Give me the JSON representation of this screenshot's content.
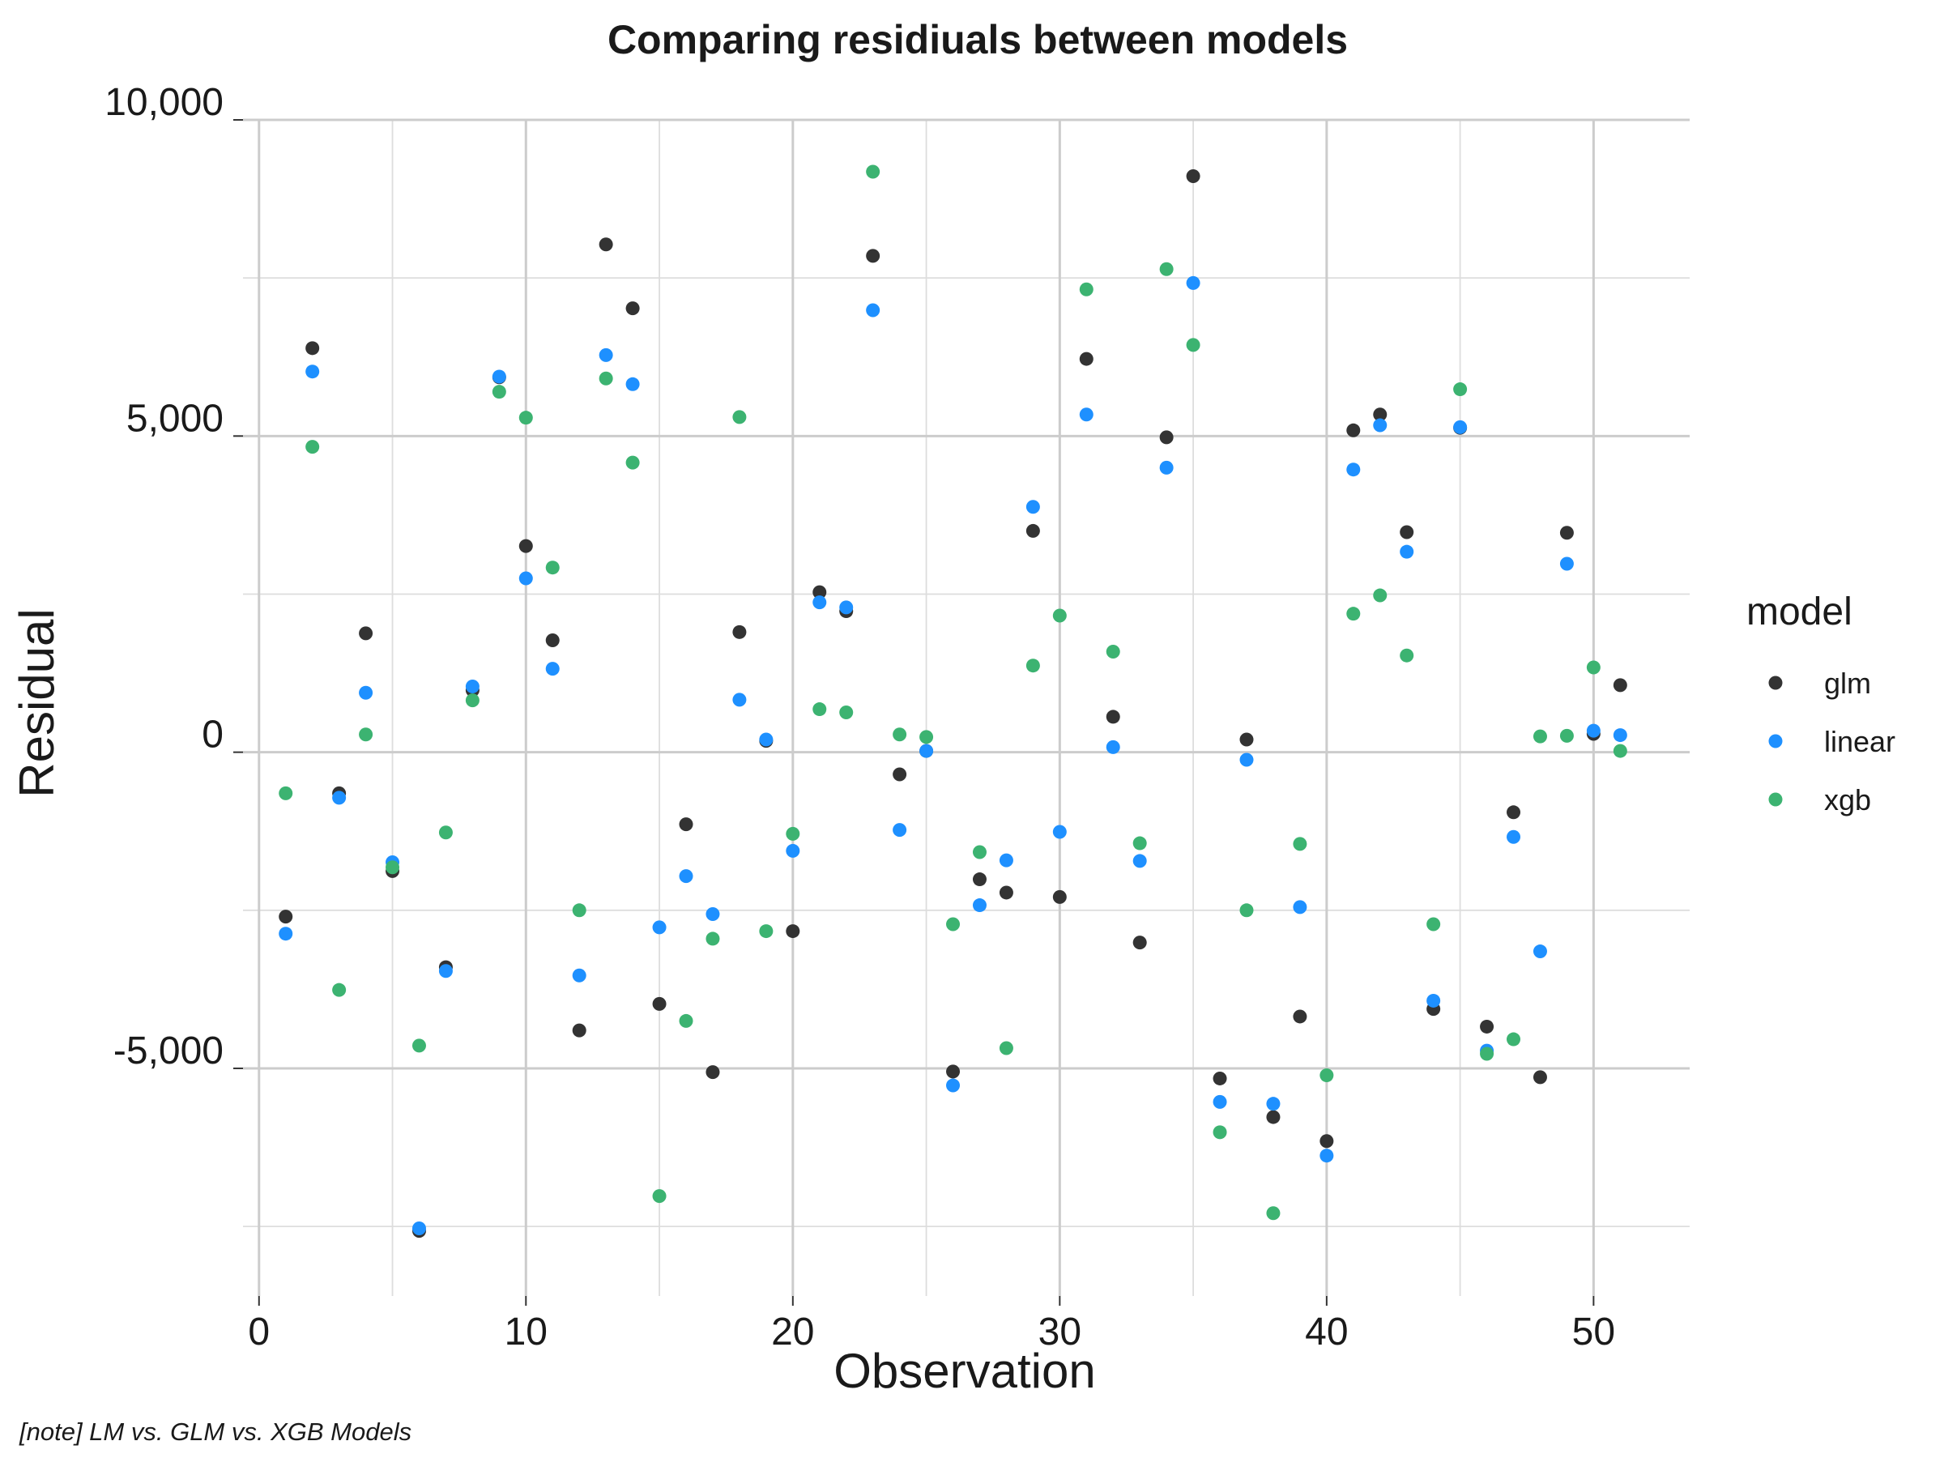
{
  "chart_data": {
    "type": "scatter",
    "title": "Comparing residiuals between models",
    "xlabel": "Observation",
    "ylabel": "Residual",
    "caption": "[note] LM vs. GLM vs. XGB Models",
    "xlim": [
      -0.6,
      53.6
    ],
    "ylim": [
      -8600,
      10000
    ],
    "x_ticks": [
      0,
      10,
      20,
      30,
      40,
      50
    ],
    "x_tick_labels": [
      "0",
      "10",
      "20",
      "30",
      "40",
      "50"
    ],
    "y_ticks": [
      -5000,
      0,
      5000,
      10000
    ],
    "y_tick_labels": [
      "-5,000",
      "0",
      "5,000",
      "10,000"
    ],
    "grid": true,
    "legend": {
      "title": "model",
      "position": "right"
    },
    "series": [
      {
        "name": "glm",
        "color": "#333333",
        "x": [
          1,
          2,
          3,
          4,
          5,
          6,
          7,
          8,
          9,
          10,
          11,
          12,
          13,
          14,
          15,
          16,
          17,
          18,
          19,
          20,
          21,
          22,
          23,
          24,
          25,
          26,
          27,
          28,
          29,
          30,
          31,
          32,
          33,
          34,
          35,
          36,
          37,
          38,
          39,
          40,
          41,
          42,
          43,
          44,
          45,
          46,
          47,
          48,
          49,
          50,
          51
        ],
        "y": [
          -2600,
          6390,
          -650,
          1880,
          -1880,
          -7570,
          -3400,
          980,
          5930,
          3260,
          1770,
          -4400,
          8030,
          7020,
          -3980,
          -1140,
          -5060,
          1900,
          180,
          -2830,
          2530,
          2230,
          7850,
          -350,
          20,
          -5050,
          -2010,
          -2220,
          3500,
          -2290,
          6220,
          560,
          -3010,
          4980,
          9110,
          -5160,
          200,
          -5770,
          -4180,
          -6150,
          5090,
          5340,
          3480,
          -4060,
          5130,
          -4340,
          -950,
          -5140,
          3470,
          290,
          1060
        ]
      },
      {
        "name": "linear",
        "color": "#1e90ff",
        "x": [
          1,
          2,
          3,
          4,
          5,
          6,
          7,
          8,
          9,
          10,
          11,
          12,
          13,
          14,
          15,
          16,
          17,
          18,
          19,
          20,
          21,
          22,
          23,
          24,
          25,
          26,
          27,
          28,
          29,
          30,
          31,
          32,
          33,
          34,
          35,
          36,
          37,
          38,
          39,
          40,
          41,
          42,
          43,
          44,
          45,
          46,
          47,
          48,
          49,
          50,
          51
        ],
        "y": [
          -2870,
          6020,
          -720,
          940,
          -1740,
          -7530,
          -3460,
          1040,
          5940,
          2750,
          1320,
          -3530,
          6280,
          5820,
          -2770,
          -1960,
          -2560,
          830,
          200,
          -1560,
          2370,
          2290,
          6990,
          -1230,
          20,
          -5270,
          -2420,
          -1710,
          3880,
          -1260,
          5340,
          80,
          -1720,
          4500,
          7420,
          -5530,
          -120,
          -5560,
          -2450,
          -6380,
          4470,
          5170,
          3170,
          -3930,
          5140,
          -4720,
          -1340,
          -3150,
          2980,
          340,
          270
        ]
      },
      {
        "name": "xgb",
        "color": "#3cb371",
        "x": [
          1,
          2,
          3,
          4,
          5,
          6,
          7,
          8,
          9,
          10,
          11,
          12,
          13,
          14,
          15,
          16,
          17,
          18,
          19,
          20,
          21,
          22,
          23,
          24,
          25,
          26,
          27,
          28,
          29,
          30,
          31,
          32,
          33,
          34,
          35,
          36,
          37,
          38,
          39,
          40,
          41,
          42,
          43,
          44,
          45,
          46,
          47,
          48,
          49,
          50,
          51
        ],
        "y": [
          -650,
          4830,
          -3760,
          280,
          -1820,
          -4640,
          -1270,
          820,
          5700,
          5290,
          2920,
          -2500,
          5910,
          4580,
          -7020,
          -4250,
          -2950,
          5300,
          -2830,
          -1290,
          680,
          630,
          9180,
          280,
          240,
          -2720,
          -1580,
          -4680,
          1370,
          2160,
          7320,
          1590,
          -1440,
          7640,
          6440,
          -6010,
          -2500,
          -7290,
          -1450,
          -5110,
          2190,
          2480,
          1530,
          -2720,
          5740,
          -4770,
          -4540,
          250,
          260,
          1340,
          20
        ]
      }
    ]
  }
}
